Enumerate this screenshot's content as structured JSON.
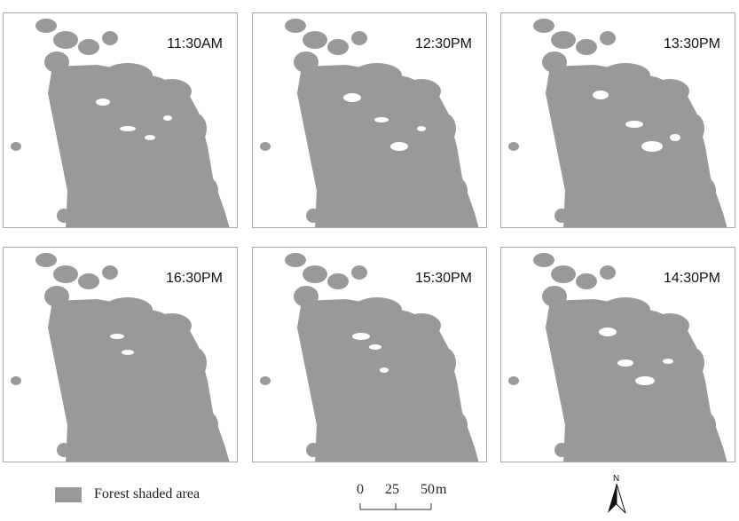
{
  "panels": [
    {
      "time": "11:30AM"
    },
    {
      "time": "12:30PM"
    },
    {
      "time": "13:30PM"
    },
    {
      "time": "16:30PM"
    },
    {
      "time": "15:30PM"
    },
    {
      "time": "14:30PM"
    }
  ],
  "legend": {
    "label": "Forest shaded area",
    "color": "#999999"
  },
  "scale": {
    "t0": "0",
    "t1": "25",
    "t2": "50",
    "unit": "m"
  },
  "north": {
    "label": "N"
  }
}
